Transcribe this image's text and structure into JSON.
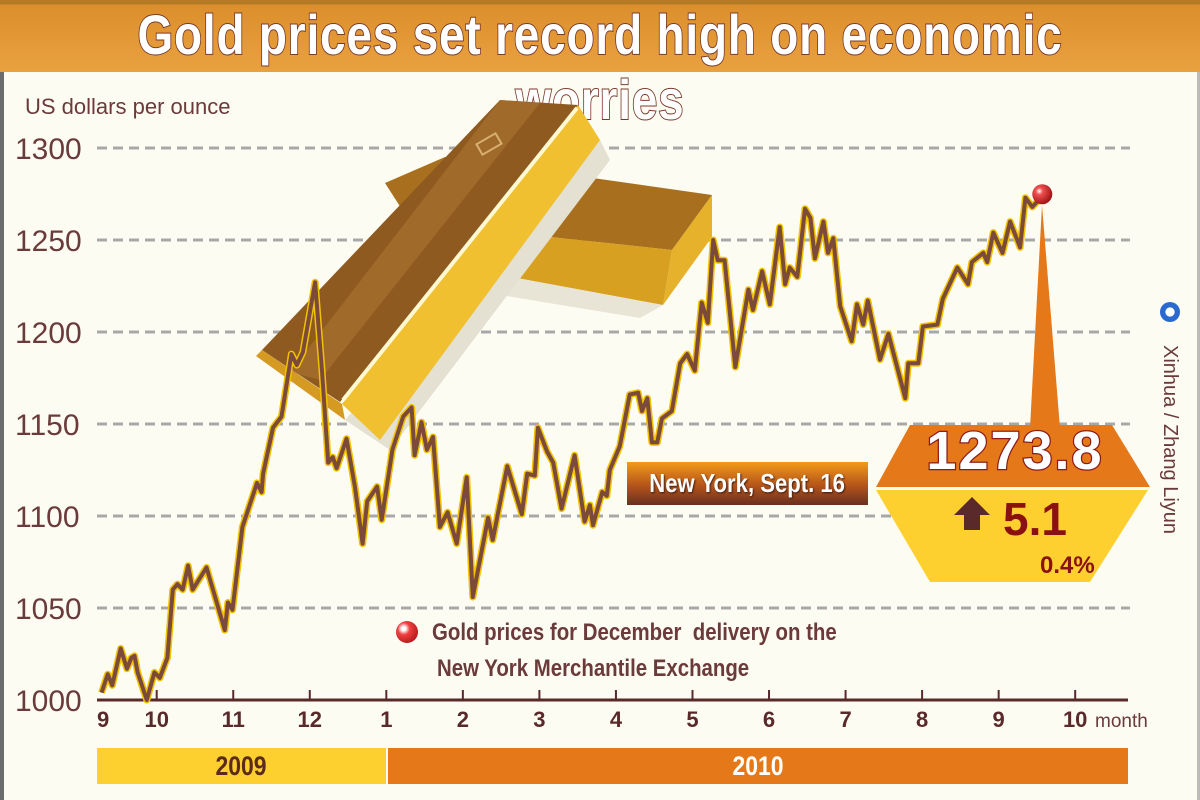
{
  "title": "Gold prices set record high on economic worries",
  "credit": "Xinhua / Zhang Liyun",
  "annotation": {
    "location_date": "New York, Sept. 16",
    "price": "1273.8",
    "change": "5.1",
    "change_pct": "0.4%",
    "direction": "up"
  },
  "legend": {
    "line1": "Gold prices for December  delivery on the",
    "line2": "New York Merchantile Exchange"
  },
  "years": [
    "2009",
    "2010"
  ],
  "colors": {
    "line": "#7b4a3a",
    "line_glow": "#f2c200",
    "accent": "#e57818",
    "yellow": "#fdd030",
    "text": "#6b3a3a"
  },
  "chart_data": {
    "type": "line",
    "title": "Gold prices set record high on economic worries",
    "ylabel": "US dollars per ounce",
    "xlabel": "month",
    "ylim": [
      1000,
      1300
    ],
    "yticks": [
      "1000",
      "1050",
      "1100",
      "1150",
      "1200",
      "1250",
      "1300"
    ],
    "x_units": "months since Oct 1, 2009 (Oct 2009 = 1, Jan 2010 = 4, Oct 2010 = 13)",
    "xlim": [
      0.22,
      13.69
    ],
    "xticks": [
      {
        "x": 0.22,
        "label": "9"
      },
      {
        "x": 1,
        "label": "10"
      },
      {
        "x": 2,
        "label": "11"
      },
      {
        "x": 3,
        "label": "12"
      },
      {
        "x": 4,
        "label": "1"
      },
      {
        "x": 5,
        "label": "2"
      },
      {
        "x": 6,
        "label": "3"
      },
      {
        "x": 7,
        "label": "4"
      },
      {
        "x": 8,
        "label": "5"
      },
      {
        "x": 9,
        "label": "6"
      },
      {
        "x": 10,
        "label": "7"
      },
      {
        "x": 11,
        "label": "8"
      },
      {
        "x": 12,
        "label": "9"
      },
      {
        "x": 13,
        "label": "10"
      }
    ],
    "grid": true,
    "series": [
      {
        "name": "Gold prices for December delivery on the New York Merchantile Exchange",
        "x": [
          0.28,
          0.36,
          0.42,
          0.53,
          0.61,
          0.67,
          0.71,
          0.75,
          0.87,
          0.97,
          1.04,
          1.14,
          1.21,
          1.27,
          1.34,
          1.41,
          1.47,
          1.65,
          1.89,
          1.93,
          1.99,
          2.12,
          2.31,
          2.37,
          2.39,
          2.52,
          2.63,
          2.76,
          2.83,
          2.91,
          3.07,
          3.16,
          3.24,
          3.3,
          3.35,
          3.48,
          3.59,
          3.69,
          3.75,
          3.88,
          3.94,
          4.08,
          4.22,
          4.33,
          4.37,
          4.46,
          4.53,
          4.61,
          4.7,
          4.8,
          4.92,
          5.05,
          5.13,
          5.33,
          5.39,
          5.58,
          5.77,
          5.84,
          5.94,
          5.98,
          6.1,
          6.18,
          6.29,
          6.46,
          6.59,
          6.66,
          6.7,
          6.82,
          6.88,
          6.92,
          7.05,
          7.18,
          7.29,
          7.34,
          7.41,
          7.47,
          7.54,
          7.6,
          7.73,
          7.84,
          7.93,
          8.03,
          8.12,
          8.2,
          8.27,
          8.33,
          8.42,
          8.56,
          8.73,
          8.79,
          8.91,
          9.01,
          9.14,
          9.21,
          9.27,
          9.37,
          9.47,
          9.54,
          9.6,
          9.71,
          9.77,
          9.84,
          9.93,
          10.08,
          10.15,
          10.23,
          10.29,
          10.45,
          10.56,
          10.78,
          10.82,
          10.95,
          11.01,
          11.2,
          11.27,
          11.46,
          11.6,
          11.65,
          11.8,
          11.85,
          11.93,
          12.05,
          12.15,
          12.28,
          12.35,
          12.44,
          12.57
        ],
        "y": [
          1004,
          1014,
          1008,
          1028,
          1017,
          1023,
          1024,
          1015,
          1000,
          1015,
          1012,
          1023,
          1060,
          1063,
          1060,
          1073,
          1060,
          1072,
          1038,
          1053,
          1049,
          1094,
          1118,
          1113,
          1123,
          1148,
          1154,
          1188,
          1182,
          1189,
          1227,
          1179,
          1129,
          1132,
          1126,
          1142,
          1116,
          1085,
          1108,
          1116,
          1098,
          1136,
          1154,
          1159,
          1133,
          1151,
          1136,
          1143,
          1094,
          1102,
          1085,
          1121,
          1056,
          1099,
          1087,
          1127,
          1101,
          1123,
          1122,
          1148,
          1135,
          1129,
          1104,
          1133,
          1097,
          1106,
          1095,
          1113,
          1111,
          1125,
          1138,
          1166,
          1167,
          1157,
          1164,
          1140,
          1140,
          1153,
          1157,
          1183,
          1188,
          1179,
          1216,
          1205,
          1250,
          1239,
          1239,
          1181,
          1223,
          1212,
          1233,
          1215,
          1257,
          1226,
          1235,
          1230,
          1267,
          1262,
          1240,
          1260,
          1243,
          1251,
          1214,
          1195,
          1215,
          1204,
          1217,
          1185,
          1199,
          1164,
          1183,
          1183,
          1203,
          1204,
          1218,
          1235,
          1226,
          1238,
          1243,
          1238,
          1254,
          1243,
          1260,
          1246,
          1273,
          1268,
          1273.8
        ]
      }
    ],
    "highlight": {
      "label": "New York, Sept. 16",
      "value": 1273.8,
      "change": 5.1,
      "change_pct": 0.4
    },
    "legend_position": "bottom-center"
  }
}
